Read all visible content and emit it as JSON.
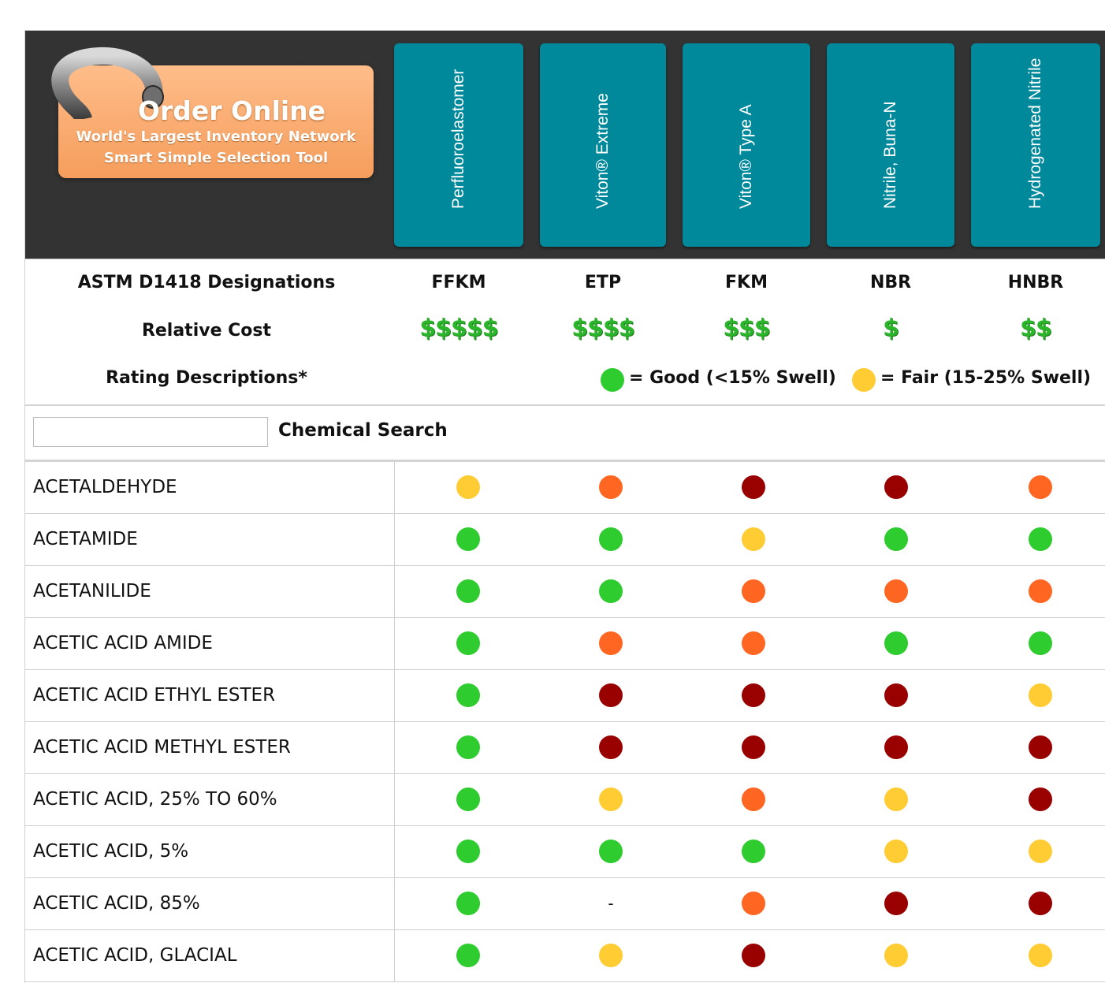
{
  "colors": {
    "header_bg": "#333333",
    "tile_bg": "#00899b",
    "good": "#2ecc2e",
    "fair": "#ffcc33",
    "poor": "#ff6622",
    "severe": "#990000",
    "cost_green": "#2bb52b"
  },
  "promo": {
    "title": "Order Online",
    "line1": "World's Largest Inventory Network",
    "line2": "Smart Simple Selection Tool",
    "icon": "o-ring-icon"
  },
  "materials": [
    {
      "name": "Perfluoroelastomer",
      "designation": "FFKM",
      "cost": "$$$$$"
    },
    {
      "name": "Viton® Extreme",
      "designation": "ETP",
      "cost": "$$$$"
    },
    {
      "name": "Viton® Type A",
      "designation": "FKM",
      "cost": "$$$"
    },
    {
      "name": "Nitrile, Buna-N",
      "designation": "NBR",
      "cost": "$"
    },
    {
      "name": "Hydrogenated Nitrile",
      "designation": "HNBR",
      "cost": "$$"
    }
  ],
  "labels": {
    "designations": "ASTM D1418 Designations",
    "cost": "Relative Cost",
    "ratings": "Rating Descriptions*"
  },
  "legend": {
    "good": "= Good (<15% Swell)",
    "fair": "= Fair (15-25% Swell)"
  },
  "search": {
    "label": "Chemical Search",
    "value": "",
    "placeholder": ""
  },
  "chemicals": [
    {
      "name": "ACETALDEHYDE",
      "ratings": [
        "fair",
        "poor",
        "severe",
        "severe",
        "poor"
      ]
    },
    {
      "name": "ACETAMIDE",
      "ratings": [
        "good",
        "good",
        "fair",
        "good",
        "good"
      ]
    },
    {
      "name": "ACETANILIDE",
      "ratings": [
        "good",
        "good",
        "poor",
        "poor",
        "poor"
      ]
    },
    {
      "name": "ACETIC ACID AMIDE",
      "ratings": [
        "good",
        "poor",
        "poor",
        "good",
        "good"
      ]
    },
    {
      "name": "ACETIC ACID ETHYL ESTER",
      "ratings": [
        "good",
        "severe",
        "severe",
        "severe",
        "fair"
      ]
    },
    {
      "name": "ACETIC ACID METHYL ESTER",
      "ratings": [
        "good",
        "severe",
        "severe",
        "severe",
        "severe"
      ]
    },
    {
      "name": "ACETIC ACID, 25% TO 60%",
      "ratings": [
        "good",
        "fair",
        "poor",
        "fair",
        "severe"
      ]
    },
    {
      "name": "ACETIC ACID, 5%",
      "ratings": [
        "good",
        "good",
        "good",
        "fair",
        "fair"
      ]
    },
    {
      "name": "ACETIC ACID, 85%",
      "ratings": [
        "good",
        "-",
        "poor",
        "severe",
        "severe"
      ]
    },
    {
      "name": "ACETIC ACID, GLACIAL",
      "ratings": [
        "good",
        "fair",
        "severe",
        "fair",
        "fair"
      ]
    }
  ]
}
